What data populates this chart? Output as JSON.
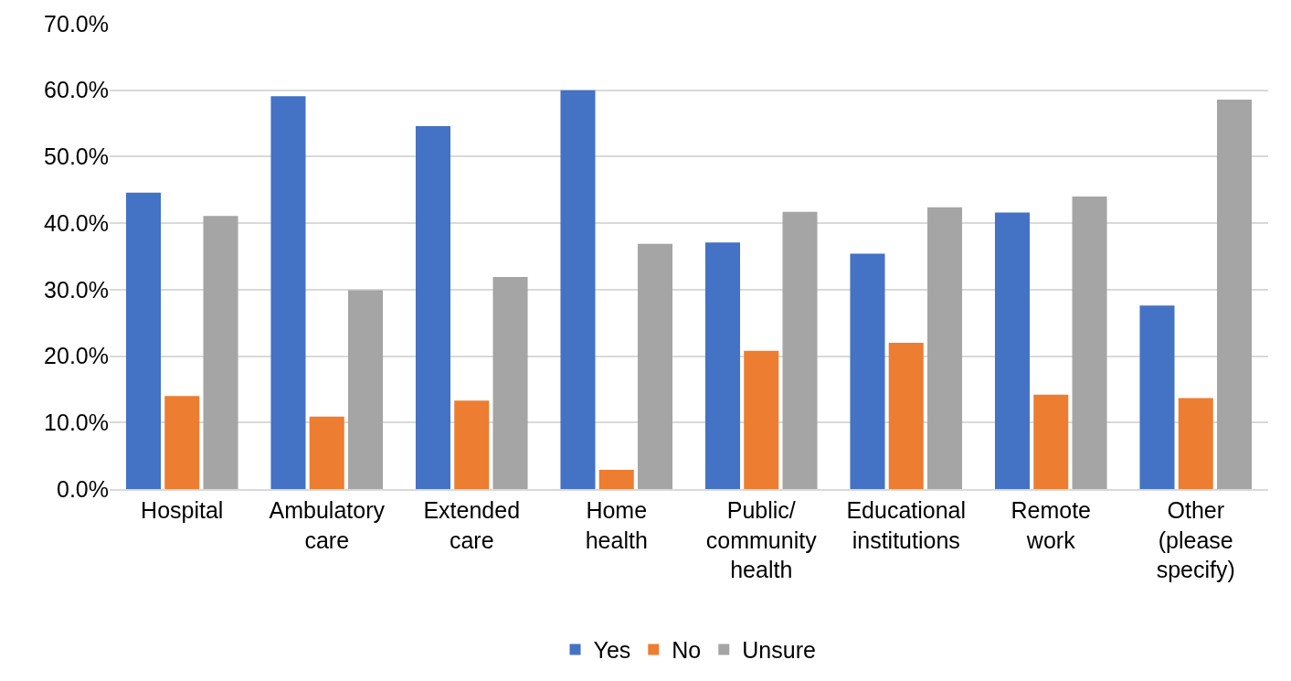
{
  "chart_data": {
    "type": "bar",
    "categories": [
      "Hospital",
      "Ambulatory care",
      "Extended care",
      "Home health",
      "Public/ community health",
      "Educational institutions",
      "Remote work",
      "Other (please specify)"
    ],
    "series": [
      {
        "name": "Yes",
        "color": "#4472c4",
        "values": [
          44.6,
          59.1,
          54.6,
          60.0,
          37.1,
          35.4,
          41.6,
          27.6
        ]
      },
      {
        "name": "No",
        "color": "#ed7d31",
        "values": [
          14.0,
          10.9,
          13.3,
          2.9,
          20.8,
          22.0,
          14.2,
          13.7
        ]
      },
      {
        "name": "Unsure",
        "color": "#a5a5a5",
        "values": [
          41.1,
          29.9,
          31.9,
          36.9,
          41.7,
          42.4,
          44.0,
          58.6
        ]
      }
    ],
    "ylim": [
      0,
      70
    ],
    "yticks": [
      {
        "value": 0,
        "label": "0.0%"
      },
      {
        "value": 10,
        "label": "10.0%"
      },
      {
        "value": 20,
        "label": "20.0%"
      },
      {
        "value": 30,
        "label": "30.0%"
      },
      {
        "value": 40,
        "label": "40.0%"
      },
      {
        "value": 50,
        "label": "50.0%"
      },
      {
        "value": 60,
        "label": "60.0%"
      },
      {
        "value": 70,
        "label": "70.0%"
      }
    ],
    "grid": "y",
    "legend": "bottom"
  }
}
